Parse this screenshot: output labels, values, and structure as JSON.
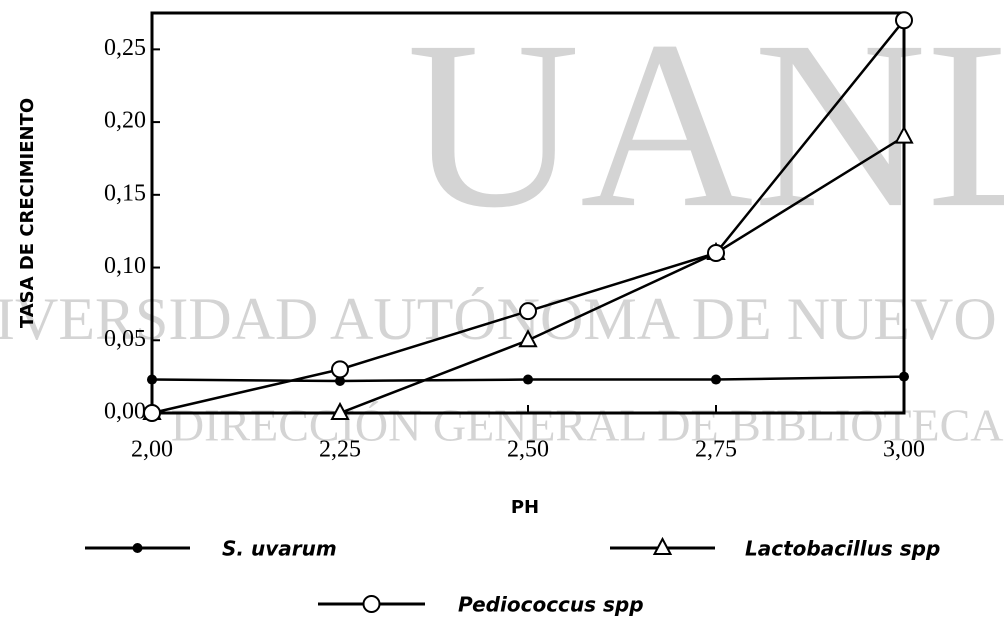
{
  "chart_data": {
    "type": "line",
    "xlabel": "PH",
    "ylabel": "TASA DE CRECIMIENTO",
    "watermark": [
      "UANL",
      "UNIVERSIDAD AUTÓNOMA DE NUEVO LEÓN",
      "DIRECCIÓN GENERAL DE BIBLIOTECAS"
    ],
    "x": [
      2.0,
      2.25,
      2.5,
      2.75,
      3.0
    ],
    "xlim": [
      2.0,
      3.0
    ],
    "xticks": [
      {
        "value": 2.0,
        "label": "2,00"
      },
      {
        "value": 2.25,
        "label": "2,25"
      },
      {
        "value": 2.5,
        "label": "2,50"
      },
      {
        "value": 2.75,
        "label": "2,75"
      },
      {
        "value": 3.0,
        "label": "3,00"
      }
    ],
    "ylim": [
      0,
      0.275
    ],
    "yticks": [
      {
        "value": 0,
        "label": "0,00"
      },
      {
        "value": 0.05,
        "label": "0,05"
      },
      {
        "value": 0.1,
        "label": "0,10"
      },
      {
        "value": 0.15,
        "label": "0,15"
      },
      {
        "value": 0.2,
        "label": "0,20"
      },
      {
        "value": 0.25,
        "label": "0,25"
      }
    ],
    "series": [
      {
        "name": "S. uvarum",
        "color": "#000000",
        "marker": "dot",
        "values": [
          0.023,
          0.022,
          0.023,
          0.023,
          0.025
        ]
      },
      {
        "name": "Lactobacillus spp",
        "color": "#000000",
        "marker": "triangle",
        "values": [
          0,
          0,
          0.05,
          0.11,
          0.19
        ]
      },
      {
        "name": "Pediococcus spp",
        "color": "#000000",
        "marker": "circle",
        "values": [
          0,
          0.03,
          0.07,
          0.11,
          0.27
        ]
      }
    ]
  }
}
